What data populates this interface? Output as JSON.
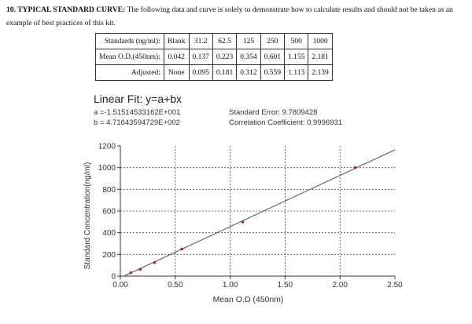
{
  "intro": {
    "heading": "10. TYPICAL STANDARD CURVE:",
    "body": " The following data and curve is solely to demonstrate how to calculate results and should not be taken as an example of best practices of this kit."
  },
  "table": {
    "rows": [
      {
        "label": "Standards (ng/ml):",
        "values": [
          "Blank",
          "31.2",
          "62.5",
          "125",
          "250",
          "500",
          "1000"
        ]
      },
      {
        "label": "Mean O.D.(450nm):",
        "values": [
          "0.042",
          "0.137",
          "0.223",
          "0.354",
          "0.601",
          "1.155",
          "2.181"
        ]
      },
      {
        "label": "Adjusted:",
        "values": [
          "None",
          "0.095",
          "0.181",
          "0.312",
          "0.559",
          "1.113",
          "2.139"
        ]
      }
    ]
  },
  "fit": {
    "title": "Linear Fit: y=a+bx",
    "a": "a =-1.51514533162E+001",
    "b": "b = 4.71643594729E+002",
    "std_error": "Standard Error: 9.7809428",
    "corr": "Correlation Coefficient: 0.9996931"
  },
  "chart_data": {
    "type": "scatter",
    "xlabel": "Mean O.D (450nm)",
    "ylabel": "Standard Concentration(ng/ml)",
    "xlim": [
      0,
      2.5
    ],
    "ylim": [
      0,
      1200
    ],
    "xticks": [
      "0.00",
      "0.50",
      "1.00",
      "1.50",
      "2.00",
      "2.50"
    ],
    "yticks": [
      "0",
      "200",
      "400",
      "600",
      "800",
      "1000",
      "1200"
    ],
    "grid": true,
    "points": [
      {
        "x": 0.095,
        "y": 31.2
      },
      {
        "x": 0.181,
        "y": 62.5
      },
      {
        "x": 0.312,
        "y": 125
      },
      {
        "x": 0.559,
        "y": 250
      },
      {
        "x": 1.113,
        "y": 500
      },
      {
        "x": 2.139,
        "y": 1000
      }
    ],
    "fit_line": {
      "intercept": -15.1514533162,
      "slope": 471.643594729
    },
    "colors": {
      "points": "#b0213a",
      "line": "#555555",
      "grid": "#444444"
    }
  }
}
